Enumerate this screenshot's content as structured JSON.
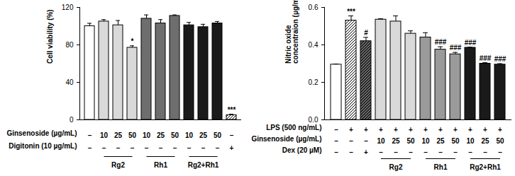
{
  "chart_data": [
    {
      "type": "bar",
      "y_label": "Cell viability (%)",
      "ylim": [
        0,
        120
      ],
      "yticks": [
        0,
        40,
        80,
        120
      ],
      "categories": [
        null,
        null,
        null,
        null,
        null,
        null,
        null,
        null,
        null,
        null,
        null
      ],
      "values": [
        100,
        105,
        101,
        77,
        108,
        103,
        111,
        101,
        99,
        103,
        5
      ],
      "errors": [
        3,
        2,
        5,
        2,
        4,
        4,
        1,
        3,
        3,
        2,
        1
      ],
      "colors": [
        "#ffffff",
        "#d9d9d9",
        "#d9d9d9",
        "#d9d9d9",
        "#6e6e6e",
        "#6e6e6e",
        "#6e6e6e",
        "#1a1a1a",
        "#1a1a1a",
        "#1a1a1a",
        "hatched"
      ],
      "significance": [
        null,
        null,
        null,
        "*",
        null,
        null,
        null,
        null,
        null,
        null,
        "***"
      ],
      "condition_rows": [
        {
          "label": "Ginsenoside (µg/mL)",
          "values": [
            "–",
            "10",
            "25",
            "50",
            "10",
            "25",
            "50",
            "10",
            "25",
            "50",
            "–"
          ]
        },
        {
          "label": "Digitonin (10 µg/mL)",
          "values": [
            "–",
            "–",
            "–",
            "–",
            "–",
            "–",
            "–",
            "–",
            "–",
            "–",
            "+"
          ]
        }
      ],
      "groups": [
        null,
        "Rg2",
        "Rg2",
        "Rg2",
        "Rh1",
        "Rh1",
        "Rh1",
        "Rg2+Rh1",
        "Rg2+Rh1",
        "Rg2+Rh1",
        null
      ]
    },
    {
      "type": "bar",
      "y_label": "Nitric oxide concentraion (µg/mL)",
      "ylim": [
        0,
        0.6
      ],
      "yticks": [
        {
          "value": 0,
          "label": "0.0"
        },
        0.2,
        0.4,
        0.6
      ],
      "categories": [
        null,
        null,
        null,
        null,
        null,
        null,
        null,
        null,
        null,
        null,
        null,
        null
      ],
      "values": [
        0.295,
        0.53,
        0.42,
        0.535,
        0.525,
        0.46,
        0.44,
        0.375,
        0.35,
        0.385,
        0.3,
        0.295
      ],
      "errors": [
        0.003,
        0.025,
        0.02,
        0.005,
        0.03,
        0.015,
        0.025,
        0.015,
        0.01,
        0.003,
        0.005,
        0.005
      ],
      "colors": [
        "#ffffff",
        "hatched",
        "hatched-dark",
        "#d9d9d9",
        "#d9d9d9",
        "#d9d9d9",
        "#9a9a9a",
        "#9a9a9a",
        "#9a9a9a",
        "#1a1a1a",
        "#1a1a1a",
        "#1a1a1a"
      ],
      "significance": [
        null,
        "***",
        "#",
        null,
        null,
        null,
        null,
        "###",
        "###",
        "###",
        "###",
        "###"
      ],
      "condition_rows": [
        {
          "label": "LPS (500 ng/mL)",
          "values": [
            "–",
            "+",
            "+",
            "+",
            "+",
            "+",
            "+",
            "+",
            "+",
            "+",
            "+",
            "+"
          ]
        },
        {
          "label": "Ginsenoside (µg/mL)",
          "values": [
            "–",
            "–",
            "–",
            "10",
            "25",
            "50",
            "10",
            "25",
            "50",
            "10",
            "25",
            "50"
          ]
        },
        {
          "label": "Dex (20 µM)",
          "values": [
            "–",
            "–",
            "+",
            "–",
            "–",
            "–",
            "–",
            "–",
            "–",
            "–",
            "–",
            "–"
          ]
        }
      ],
      "groups": [
        null,
        null,
        null,
        "Rg2",
        "Rg2",
        "Rg2",
        "Rh1",
        "Rh1",
        "Rh1",
        "Rg2+Rh1",
        "Rg2+Rh1",
        "Rg2+Rh1"
      ]
    }
  ]
}
